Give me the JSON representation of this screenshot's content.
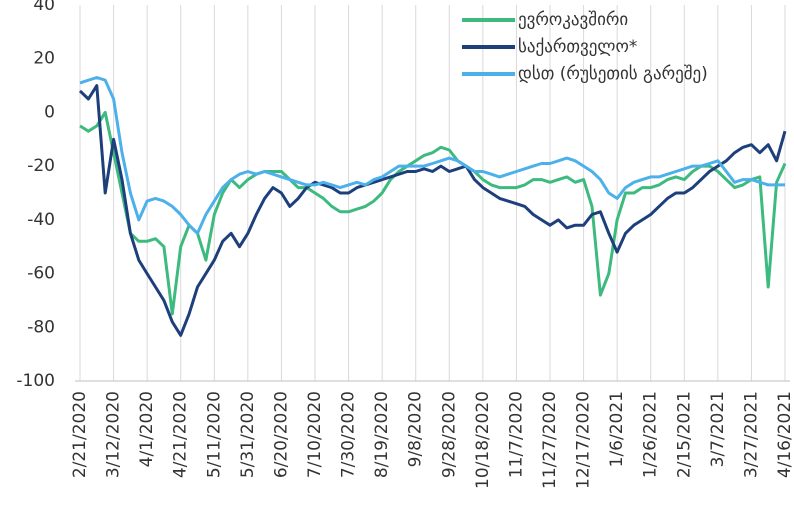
{
  "chart_data": {
    "type": "line",
    "categories": [
      "2/21/2020",
      null,
      null,
      null,
      "3/12/2020",
      null,
      null,
      null,
      "4/1/2020",
      null,
      null,
      null,
      "4/21/2020",
      null,
      null,
      null,
      "5/11/2020",
      null,
      null,
      null,
      "5/31/2020",
      null,
      null,
      null,
      "6/20/2020",
      null,
      null,
      null,
      "7/10/2020",
      null,
      null,
      null,
      "7/30/2020",
      null,
      null,
      null,
      "8/19/2020",
      null,
      null,
      null,
      "9/8/2020",
      null,
      null,
      null,
      "9/28/2020",
      null,
      null,
      null,
      "10/18/2020",
      null,
      null,
      null,
      "11/7/2020",
      null,
      null,
      null,
      "11/27/2020",
      null,
      null,
      null,
      "12/17/2020",
      null,
      null,
      null,
      "1/6/2021",
      null,
      null,
      null,
      "1/26/2021",
      null,
      null,
      null,
      "2/15/2021",
      null,
      null,
      null,
      "3/7/2021",
      null,
      null,
      null,
      "3/27/2021",
      null,
      null,
      null,
      "4/16/2021"
    ],
    "series": [
      {
        "name": "ევროკავშირი",
        "color": "#3dba7e",
        "values": [
          -5,
          -7,
          -5,
          0,
          -15,
          -30,
          -45,
          -48,
          -48,
          -47,
          -50,
          -75,
          -50,
          -42,
          -45,
          -55,
          -38,
          -30,
          -25,
          -28,
          -25,
          -23,
          -22,
          -22,
          -22,
          -25,
          -28,
          -28,
          -30,
          -32,
          -35,
          -37,
          -37,
          -36,
          -35,
          -33,
          -30,
          -25,
          -22,
          -20,
          -18,
          -16,
          -15,
          -13,
          -14,
          -18,
          -20,
          -22,
          -25,
          -27,
          -28,
          -28,
          -28,
          -27,
          -25,
          -25,
          -26,
          -25,
          -24,
          -26,
          -25,
          -35,
          -68,
          -60,
          -40,
          -30,
          -30,
          -28,
          -28,
          -27,
          -25,
          -24,
          -25,
          -22,
          -20,
          -20,
          -22,
          -25,
          -28,
          -27,
          -25,
          -24,
          -65,
          -26,
          -19
        ]
      },
      {
        "name": "საქართველო*",
        "color": "#1d3f7c",
        "values": [
          8,
          5,
          10,
          -30,
          -10,
          -25,
          -45,
          -55,
          -60,
          -65,
          -70,
          -78,
          -83,
          -75,
          -65,
          -60,
          -55,
          -48,
          -45,
          -50,
          -45,
          -38,
          -32,
          -28,
          -30,
          -35,
          -32,
          -28,
          -26,
          -27,
          -28,
          -30,
          -30,
          -28,
          -27,
          -26,
          -25,
          -24,
          -23,
          -22,
          -22,
          -21,
          -22,
          -20,
          -22,
          -21,
          -20,
          -25,
          -28,
          -30,
          -32,
          -33,
          -34,
          -35,
          -38,
          -40,
          -42,
          -40,
          -43,
          -42,
          -42,
          -38,
          -37,
          -45,
          -52,
          -45,
          -42,
          -40,
          -38,
          -35,
          -32,
          -30,
          -30,
          -28,
          -25,
          -22,
          -20,
          -18,
          -15,
          -13,
          -12,
          -15,
          -12,
          -18,
          -7
        ]
      },
      {
        "name": "დსთ (რუსეთის გარეშე)",
        "color": "#4cb0ea",
        "values": [
          11,
          12,
          13,
          12,
          5,
          -15,
          -30,
          -40,
          -33,
          -32,
          -33,
          -35,
          -38,
          -42,
          -45,
          -38,
          -33,
          -28,
          -25,
          -23,
          -22,
          -23,
          -22,
          -23,
          -24,
          -25,
          -26,
          -27,
          -27,
          -26,
          -27,
          -28,
          -27,
          -26,
          -27,
          -25,
          -24,
          -22,
          -20,
          -20,
          -20,
          -20,
          -19,
          -18,
          -17,
          -18,
          -20,
          -22,
          -22,
          -23,
          -24,
          -23,
          -22,
          -21,
          -20,
          -19,
          -19,
          -18,
          -17,
          -18,
          -20,
          -22,
          -25,
          -30,
          -32,
          -28,
          -26,
          -25,
          -24,
          -24,
          -23,
          -22,
          -21,
          -20,
          -20,
          -19,
          -18,
          -22,
          -26,
          -25,
          -25,
          -26,
          -27,
          -27,
          -27
        ]
      }
    ],
    "ylim": [
      -100,
      40
    ],
    "yticks": [
      -100,
      -80,
      -60,
      -40,
      -20,
      0,
      20,
      40
    ],
    "grid": true,
    "legend": "upper right"
  }
}
